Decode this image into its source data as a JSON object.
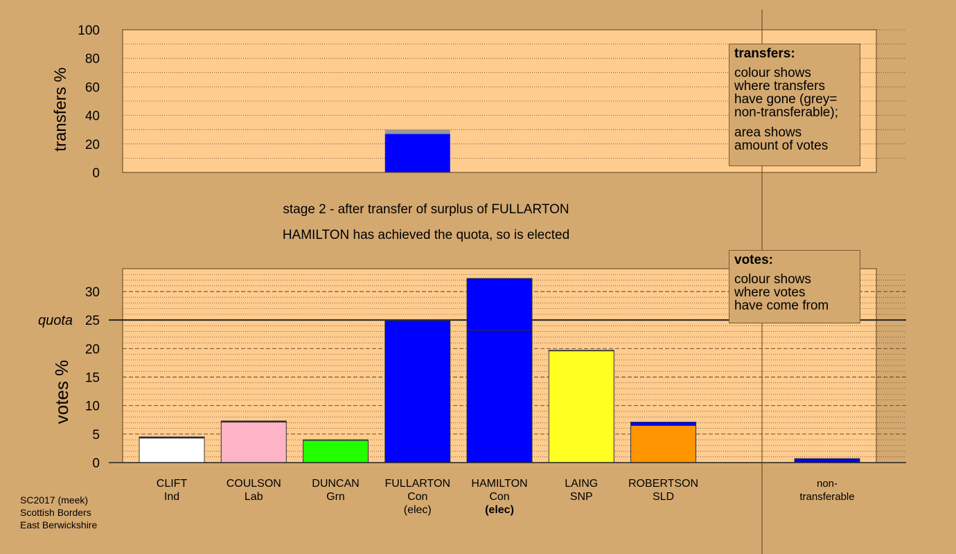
{
  "stage_title": "stage 2 - after transfer of surplus of FULLARTON",
  "stage_subtitle": "HAMILTON has achieved the quota, so is elected",
  "footer": {
    "line1": "SC2017 (meek)",
    "line2": "Scottish Borders",
    "line3": "East Berwickshire"
  },
  "legend_transfers": {
    "title": "transfers:",
    "line1": "colour shows",
    "line2": "where transfers",
    "line3": "have gone (grey=",
    "line4": "non-transferable);",
    "line5": "area shows",
    "line6": "amount of votes"
  },
  "legend_votes": {
    "title": "votes:",
    "line1": "colour shows",
    "line2": "where votes",
    "line3": "have come from"
  },
  "chart_data": [
    {
      "type": "bar",
      "title": "",
      "ylabel": "transfers %",
      "ylim": [
        0,
        100
      ],
      "yticks": [
        0,
        20,
        40,
        60,
        80,
        100
      ],
      "grid": true,
      "bars": [
        {
          "category": "FULLARTON",
          "segments": [
            {
              "value": 27,
              "color": "#0000ff"
            },
            {
              "value": 3,
              "color": "#999999"
            }
          ]
        }
      ]
    },
    {
      "type": "bar",
      "title": "",
      "ylabel": "votes %",
      "ylim": [
        0,
        33
      ],
      "yticks": [
        0,
        5,
        10,
        15,
        20,
        25,
        30
      ],
      "grid": true,
      "quota": {
        "label": "quota",
        "value": 25
      },
      "categories": [
        {
          "name": "CLIFT",
          "party": "Ind",
          "status": ""
        },
        {
          "name": "COULSON",
          "party": "Lab",
          "status": ""
        },
        {
          "name": "DUNCAN",
          "party": "Grn",
          "status": ""
        },
        {
          "name": "FULLARTON",
          "party": "Con",
          "status": "(elec)"
        },
        {
          "name": "HAMILTON",
          "party": "Con",
          "status": "(elec)"
        },
        {
          "name": "LAING",
          "party": "SNP",
          "status": ""
        },
        {
          "name": "ROBERTSON",
          "party": "SLD",
          "status": ""
        },
        {
          "name": "non-",
          "party": "transferable",
          "status": ""
        }
      ],
      "series": [
        {
          "values": [
            4.3,
            7.1,
            3.9,
            24.9,
            23.2,
            19.6,
            6.5,
            0
          ],
          "color": "own"
        },
        {
          "values": [
            0.2,
            0.2,
            0.1,
            0,
            9.1,
            0.1,
            0.6,
            0.7
          ],
          "color": "#0000ff"
        }
      ],
      "colors": [
        "#ffffff",
        "#ffb3c6",
        "#22ff00",
        "#0000ff",
        "#0000ff",
        "#ffff22",
        "#ff9500",
        "#0000ff"
      ]
    }
  ]
}
